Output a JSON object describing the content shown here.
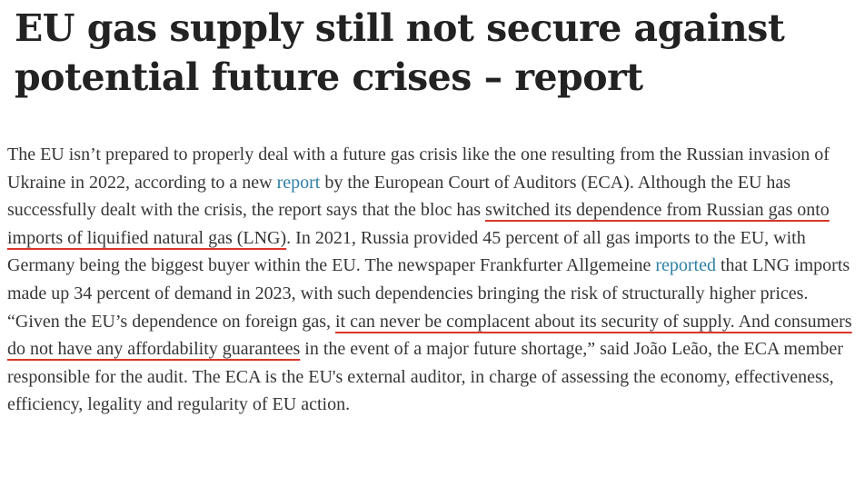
{
  "headline": "EU gas supply still not secure against potential future crises – report",
  "article": {
    "t1": "The EU isn’t prepared to properly deal with a future gas crisis like the one resulting from the Russian invasion of Ukraine in 2022, according to a new ",
    "link1": "report",
    "t2": " by the European Court of Auditors (ECA). Although the EU has successfully dealt with the crisis, the report says that the bloc has ",
    "hl1": "switched its dependence from Russian gas onto imports of liquified natural gas (LNG)",
    "t3": ". In 2021, Russia provided 45 percent of all gas imports to the EU, with Germany being the biggest buyer within the EU. The newspaper Frankfurter Allgemeine ",
    "link2": "reported",
    "t4": " that LNG imports made up 34 percent of demand in 2023, with such dependencies bringing the risk of structurally higher prices. “Given the EU’s dependence on foreign gas, ",
    "hl2": "it can never be complacent about its security of supply. And consumers do not have any affordability guarantees",
    "t5": " in the event of a major future shortage,” said João Leão, the ECA member responsible for the audit. The ECA is the EU's external auditor, in charge of assessing the economy, effectiveness, efficiency, legality and regularity of EU action."
  },
  "colors": {
    "link": "#2e7fa5",
    "underline": "#d9362b",
    "text": "#363636",
    "headline": "#222222"
  }
}
